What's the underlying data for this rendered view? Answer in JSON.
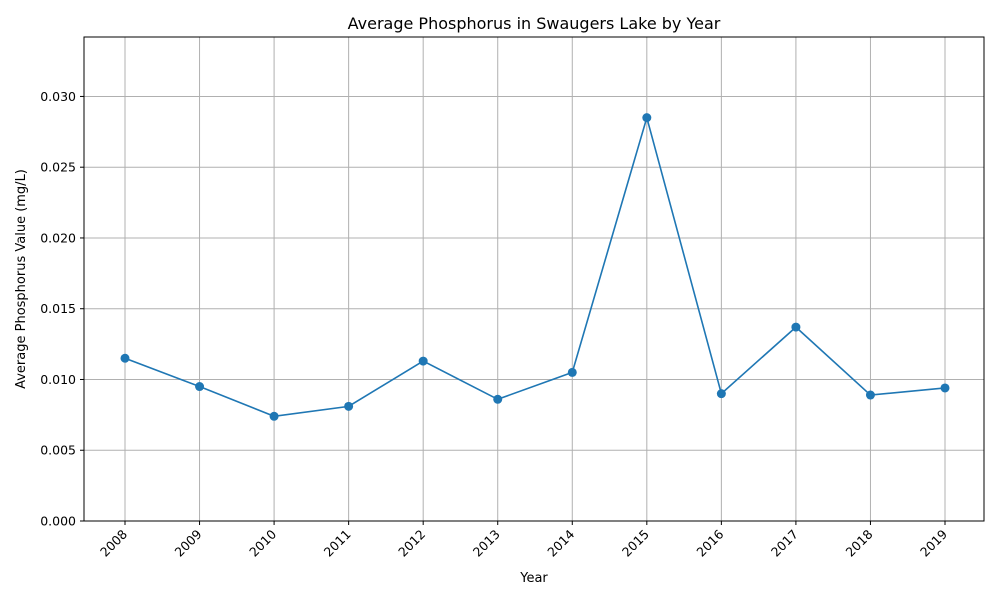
{
  "chart_data": {
    "type": "line",
    "title": "Average Phosphorus in Swaugers Lake by Year",
    "xlabel": "Year",
    "ylabel": "Average Phosphorus Value (mg/L)",
    "categories": [
      "2008",
      "2009",
      "2010",
      "2011",
      "2012",
      "2013",
      "2014",
      "2015",
      "2016",
      "2017",
      "2018",
      "2019"
    ],
    "series": [
      {
        "values": [
          0.0115,
          0.0095,
          0.0074,
          0.0081,
          0.0113,
          0.0086,
          0.0105,
          0.0285,
          0.009,
          0.0137,
          0.0089,
          0.0094
        ],
        "color": "#1f77b4",
        "marker": "circle"
      }
    ],
    "ylim": [
      0,
      0.0342
    ],
    "yticks": [
      "0.000",
      "0.005",
      "0.010",
      "0.015",
      "0.020",
      "0.025",
      "0.030"
    ],
    "ytick_values": [
      0,
      0.005,
      0.01,
      0.015,
      0.02,
      0.025,
      0.03
    ],
    "grid": true,
    "legend": "none"
  }
}
